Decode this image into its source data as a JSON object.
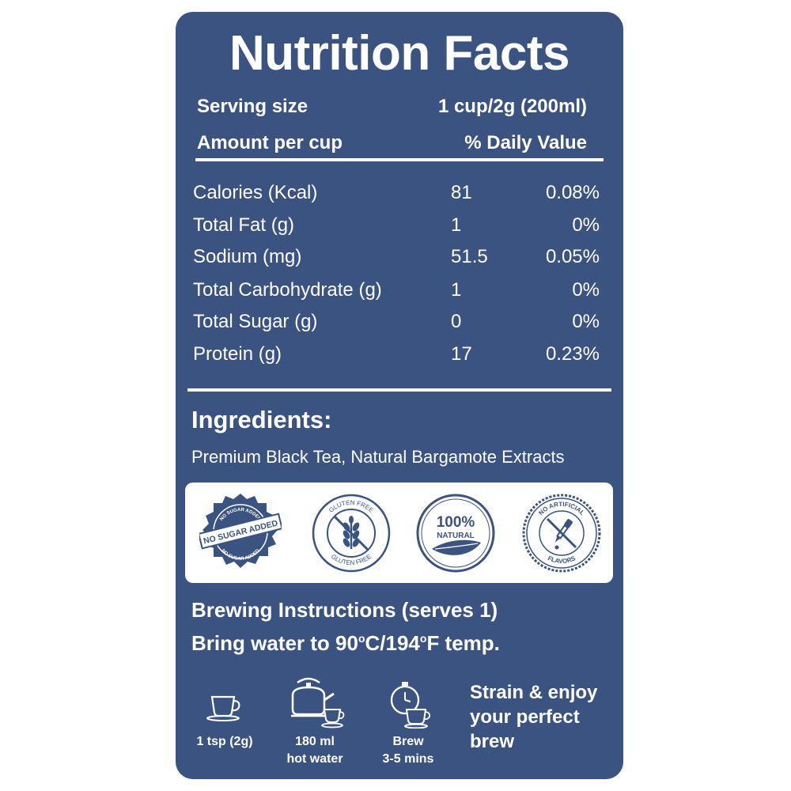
{
  "title": "Nutrition Facts",
  "serving": {
    "label": "Serving size",
    "value": "1 cup/2g (200ml)"
  },
  "amount_header": {
    "label": "Amount per cup",
    "dv_label": "% Daily Value"
  },
  "nutrients": [
    {
      "label": "Calories (Kcal)",
      "amount": "81",
      "dv": "0.08%"
    },
    {
      "label": "Total Fat (g)",
      "amount": "1",
      "dv": "0%"
    },
    {
      "label": "Sodium (mg)",
      "amount": "51.5",
      "dv": "0.05%"
    },
    {
      "label": "Total Carbohydrate (g)",
      "amount": "1",
      "dv": "0%"
    },
    {
      "label": "Total Sugar (g)",
      "amount": "0",
      "dv": "0%"
    },
    {
      "label": "Protein (g)",
      "amount": "17",
      "dv": "0.23%"
    }
  ],
  "ingredients": {
    "heading": "Ingredients:",
    "text": "Premium Black Tea, Natural Bargamote Extracts"
  },
  "badges": {
    "no_sugar": {
      "main": "NO SUGAR ADDED",
      "ring_top": "NO SUGAR ADDED",
      "ring_bottom": "NO SUGAR ADDED",
      "icon": "no-sugar-badge-icon"
    },
    "gluten_free": {
      "top": "GLUTEN FREE",
      "bottom": "GLUTEN FREE",
      "icon": "wheat-crossed-icon"
    },
    "natural": {
      "big": "100%",
      "small": "NATURAL",
      "icon": "leaf-icon"
    },
    "no_artificial": {
      "top": "NO ARTIFICIAL",
      "bottom": "FLAVORS",
      "icon": "dropper-crossed-icon"
    }
  },
  "brewing": {
    "line1": "Brewing Instructions (serves 1)",
    "line2_prefix": "Bring water to 90",
    "line2_mid": "C/194",
    "line2_suffix": "F temp.",
    "degree": "o"
  },
  "steps": [
    {
      "line1": "1 tsp (2g)",
      "line2": "",
      "icon": "teacup-icon"
    },
    {
      "line1": "180 ml",
      "line2": "hot water",
      "icon": "kettle-icon"
    },
    {
      "line1": "Brew",
      "line2": "3-5 mins",
      "icon": "timer-cup-icon"
    }
  ],
  "enjoy": {
    "line1": "Strain & enjoy",
    "line2": "your perfect",
    "line3": "brew"
  },
  "colors": {
    "panel": "#3a5380",
    "text": "#ffffff",
    "badge_bg": "#ffffff"
  }
}
